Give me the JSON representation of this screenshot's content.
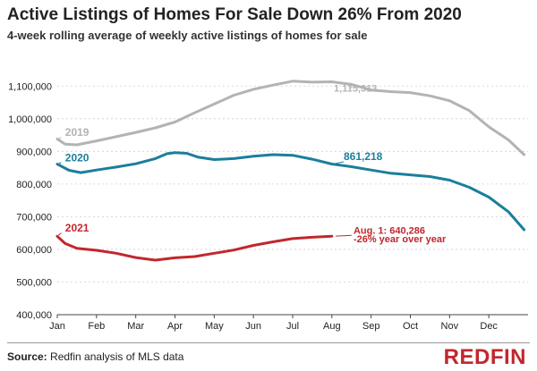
{
  "header": {
    "title": "Active Listings of Homes For Sale Down 26% From 2020",
    "subtitle": "4-week rolling average of weekly active listings of homes for sale"
  },
  "footer": {
    "source_label": "Source:",
    "source_text": " Redfin analysis of MLS data",
    "logo": "REDFIN"
  },
  "colors": {
    "s2019": "#b3b3b3",
    "s2020": "#1a7f9c",
    "s2021": "#c1272d",
    "grid": "#cfcfcf",
    "axis": "#444444"
  },
  "chart_data": {
    "type": "line",
    "title": "Active Listings of Homes For Sale Down 26% From 2020",
    "subtitle": "4-week rolling average of weekly active listings of homes for sale",
    "x_ticks": [
      "Jan",
      "Feb",
      "Mar",
      "Apr",
      "May",
      "Jun",
      "Jul",
      "Aug",
      "Sep",
      "Oct",
      "Nov",
      "Dec"
    ],
    "y_ticks": [
      400000,
      500000,
      600000,
      700000,
      800000,
      900000,
      1000000,
      1100000
    ],
    "y_tick_labels": [
      "400,000",
      "500,000",
      "600,000",
      "700,000",
      "800,000",
      "900,000",
      "1,000,000",
      "1,100,000"
    ],
    "ylim": [
      400000,
      1150000
    ],
    "xlim": [
      1,
      13
    ],
    "grid": true,
    "series": [
      {
        "name": "2019",
        "key": "s2019",
        "x": [
          1,
          1.2,
          1.5,
          2,
          2.5,
          3,
          3.5,
          4,
          4.5,
          5,
          5.5,
          6,
          6.5,
          7,
          7.5,
          8,
          8.5,
          9,
          9.5,
          10,
          10.5,
          11,
          11.5,
          12,
          12.5,
          12.9
        ],
        "y": [
          938000,
          922000,
          920000,
          932000,
          945000,
          958000,
          972000,
          990000,
          1018000,
          1045000,
          1072000,
          1090000,
          1103000,
          1115000,
          1112000,
          1113000,
          1105000,
          1088000,
          1083000,
          1080000,
          1070000,
          1055000,
          1025000,
          975000,
          935000,
          890000
        ]
      },
      {
        "name": "2020",
        "key": "s2020",
        "x": [
          1,
          1.3,
          1.6,
          2,
          2.5,
          3,
          3.5,
          3.8,
          4,
          4.3,
          4.6,
          5,
          5.5,
          6,
          6.5,
          7,
          7.5,
          8,
          8.5,
          9,
          9.5,
          10,
          10.5,
          11,
          11.5,
          12,
          12.5,
          12.9
        ],
        "y": [
          861000,
          842000,
          835000,
          843000,
          852000,
          862000,
          878000,
          893000,
          896000,
          894000,
          882000,
          875000,
          878000,
          885000,
          890000,
          888000,
          876000,
          861218,
          853000,
          843000,
          833000,
          828000,
          823000,
          812000,
          790000,
          760000,
          715000,
          660000
        ]
      },
      {
        "name": "2021",
        "key": "s2021",
        "x": [
          1,
          1.2,
          1.5,
          2,
          2.5,
          3,
          3.5,
          4,
          4.5,
          5,
          5.5,
          6,
          6.5,
          7,
          7.5,
          8
        ],
        "y": [
          640000,
          618000,
          603000,
          597000,
          588000,
          575000,
          567000,
          574000,
          578000,
          588000,
          598000,
          612000,
          623000,
          633000,
          637000,
          640286
        ]
      }
    ],
    "annotations": [
      {
        "key": "a2019",
        "text": "2019",
        "series": "s2019"
      },
      {
        "key": "a2020",
        "text": "2020",
        "series": "s2020"
      },
      {
        "key": "a2021",
        "text": "2021",
        "series": "s2021"
      },
      {
        "key": "aPeak",
        "text": "1,115,313",
        "series": "s2019"
      },
      {
        "key": "a2020val",
        "text": "861,218",
        "series": "s2020"
      },
      {
        "key": "aAug1",
        "text": "Aug. 1: 640,286",
        "series": "s2021"
      },
      {
        "key": "aYoY",
        "text": "-26% year over year",
        "series": "s2021"
      }
    ]
  }
}
